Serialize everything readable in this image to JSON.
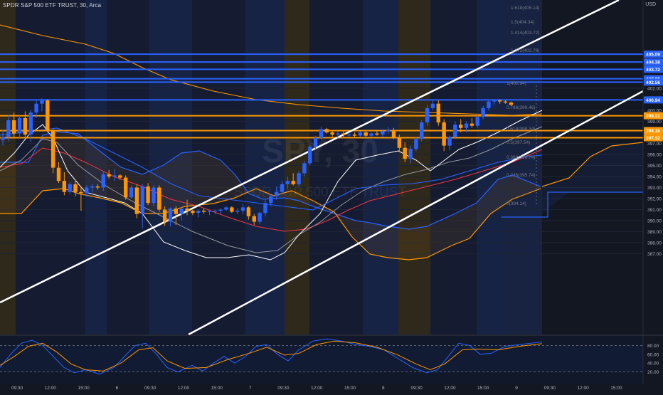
{
  "header": {
    "title": "SPDR S&P 500 ETF TRUST",
    "interval": "30",
    "exchange": "Arca",
    "currency": "USD"
  },
  "watermark": {
    "symbol": "SPY, 30",
    "name": "SPDR S&P 500 ETF TRUST"
  },
  "colors": {
    "background": "#131722",
    "bull": "#2962ff",
    "bear": "#ff9800",
    "hline_blue": "#2962ff",
    "hline_orange": "#ff9800",
    "channel": "#ffffff",
    "session_blue": "#172548",
    "session_orange": "#332b1c"
  },
  "price_axis": {
    "ticks": [
      "402.00",
      "400.00",
      "399.00",
      "398.00",
      "397.00",
      "396.00",
      "395.00",
      "394.00",
      "393.00",
      "392.00",
      "391.00",
      "390.00",
      "389.00",
      "388.00",
      "387.00"
    ],
    "labels": [
      {
        "text": "405.09",
        "value": 405.09,
        "color": "#2962ff"
      },
      {
        "text": "404.38",
        "value": 404.38,
        "color": "#2962ff"
      },
      {
        "text": "403.72",
        "value": 403.72,
        "color": "#2962ff"
      },
      {
        "text": "402.86",
        "value": 402.86,
        "color": "#2962ff"
      },
      {
        "text": "402.56",
        "value": 402.56,
        "color": "#2962ff"
      },
      {
        "text": "400.94",
        "value": 400.94,
        "color": "#2962ff"
      },
      {
        "text": "399.51",
        "value": 399.51,
        "color": "#ff9800"
      },
      {
        "text": "398.16",
        "value": 398.16,
        "color": "#ff9800"
      },
      {
        "text": "397.52",
        "value": 397.52,
        "color": "#ff9800"
      }
    ],
    "faint_labels": [
      "404.00"
    ]
  },
  "fib_labels": [
    "1.618(405.14)",
    "1.5(404.34)",
    "1.414(403.72)",
    "1.272(402.79)",
    "1(400.94)",
    "0.786(399.48)",
    "0.618(398.34)",
    "0.5(397.54)",
    "0.382(396.74)",
    "0.236(395.74)",
    "0(394.14)"
  ],
  "time_axis": [
    "09:30",
    "12:00",
    "15:00",
    "6",
    "09:30",
    "12:00",
    "15:00",
    "7",
    "09:30",
    "12:00",
    "15:00",
    "8",
    "09:30",
    "12:00",
    "15:00",
    "9",
    "09:30",
    "12:00",
    "15:00"
  ],
  "oscillator_ticks": [
    "80.00",
    "60.00",
    "40.00",
    "20.00"
  ],
  "chart_data": {
    "type": "candlestick",
    "title": "SPDR S&P 500 ETF TRUST, 30, Arca",
    "ylim": [
      386.8,
      406.0
    ],
    "yunit": "USD",
    "fields": [
      "open",
      "high",
      "low",
      "close"
    ],
    "candles": [
      [
        397.3,
        398.2,
        396.8,
        397.6
      ],
      [
        397.6,
        399.6,
        397.2,
        399.1
      ],
      [
        399.1,
        399.8,
        397.6,
        397.9
      ],
      [
        397.9,
        399.6,
        397.5,
        399.3
      ],
      [
        399.3,
        399.9,
        397.6,
        397.8
      ],
      [
        397.8,
        400.0,
        397.1,
        399.8
      ],
      [
        399.8,
        400.9,
        399.3,
        400.6
      ],
      [
        400.6,
        401.1,
        399.9,
        400.9
      ],
      [
        400.9,
        401.0,
        398.0,
        398.2
      ],
      [
        398.2,
        398.3,
        394.3,
        394.8
      ],
      [
        394.8,
        395.3,
        393.4,
        393.6
      ],
      [
        393.6,
        394.4,
        392.3,
        392.6
      ],
      [
        392.6,
        393.5,
        392.4,
        393.3
      ],
      [
        393.3,
        393.7,
        392.2,
        392.6
      ],
      [
        392.6,
        393.1,
        390.9,
        392.5
      ],
      [
        392.5,
        393.2,
        392.2,
        393.0
      ],
      [
        393.0,
        393.3,
        392.6,
        393.1
      ],
      [
        393.1,
        393.3,
        392.8,
        393.0
      ],
      [
        393.0,
        394.5,
        392.7,
        394.2
      ],
      [
        394.2,
        394.6,
        393.8,
        394.0
      ],
      [
        394.0,
        394.7,
        393.6,
        394.1
      ],
      [
        394.1,
        394.2,
        393.7,
        393.9
      ],
      [
        393.9,
        394.1,
        391.9,
        392.1
      ],
      [
        392.1,
        393.2,
        392.0,
        393.0
      ],
      [
        393.0,
        393.3,
        390.2,
        390.6
      ],
      [
        390.6,
        393.3,
        389.3,
        393.1
      ],
      [
        393.1,
        393.4,
        391.4,
        391.6
      ],
      [
        391.6,
        393.2,
        391.3,
        393.0
      ],
      [
        393.0,
        393.2,
        390.8,
        391.0
      ],
      [
        391.0,
        391.3,
        389.5,
        389.9
      ],
      [
        389.9,
        391.2,
        389.5,
        391.1
      ],
      [
        391.1,
        391.3,
        389.6,
        390.6
      ],
      [
        390.6,
        391.2,
        390.0,
        391.1
      ],
      [
        391.1,
        391.9,
        390.5,
        390.9
      ],
      [
        390.9,
        391.0,
        390.5,
        390.7
      ],
      [
        390.7,
        391.0,
        390.3,
        390.9
      ],
      [
        390.9,
        391.1,
        390.6,
        390.8
      ],
      [
        390.8,
        391.0,
        390.5,
        390.9
      ],
      [
        390.9,
        391.0,
        390.6,
        390.9
      ],
      [
        390.9,
        391.1,
        390.6,
        391.0
      ],
      [
        391.0,
        391.3,
        390.9,
        391.2
      ],
      [
        391.2,
        391.3,
        390.7,
        390.8
      ],
      [
        390.8,
        391.1,
        390.6,
        390.9
      ],
      [
        390.9,
        391.5,
        390.6,
        391.2
      ],
      [
        391.2,
        391.3,
        390.1,
        390.4
      ],
      [
        390.4,
        390.6,
        389.6,
        389.9
      ],
      [
        389.9,
        390.8,
        389.7,
        390.7
      ],
      [
        390.7,
        391.9,
        390.4,
        391.6
      ],
      [
        391.6,
        392.4,
        391.3,
        392.2
      ],
      [
        392.2,
        393.1,
        391.9,
        392.6
      ],
      [
        392.6,
        393.6,
        392.4,
        393.3
      ],
      [
        393.3,
        394.0,
        392.9,
        393.6
      ],
      [
        393.6,
        394.3,
        393.2,
        393.3
      ],
      [
        393.3,
        394.5,
        393.1,
        394.3
      ],
      [
        394.3,
        395.4,
        394.0,
        395.2
      ],
      [
        395.2,
        396.9,
        395.0,
        396.7
      ],
      [
        396.7,
        397.7,
        396.5,
        397.5
      ],
      [
        397.5,
        398.5,
        397.3,
        398.3
      ],
      [
        398.3,
        398.4,
        397.9,
        398.0
      ],
      [
        398.0,
        398.2,
        397.6,
        397.8
      ],
      [
        397.8,
        398.1,
        397.5,
        397.9
      ],
      [
        397.9,
        398.1,
        397.6,
        397.8
      ],
      [
        397.8,
        398.0,
        397.6,
        397.8
      ],
      [
        397.8,
        398.0,
        397.6,
        397.7
      ],
      [
        397.7,
        398.1,
        397.6,
        398.0
      ],
      [
        398.0,
        398.1,
        397.6,
        397.7
      ],
      [
        397.7,
        398.0,
        397.6,
        397.9
      ],
      [
        397.9,
        398.2,
        397.7,
        397.8
      ],
      [
        397.8,
        398.3,
        397.6,
        398.1
      ],
      [
        398.1,
        398.5,
        397.9,
        398.2
      ],
      [
        398.2,
        398.4,
        397.4,
        397.5
      ],
      [
        397.5,
        397.8,
        396.2,
        396.6
      ],
      [
        396.6,
        397.1,
        395.3,
        395.6
      ],
      [
        395.6,
        396.8,
        395.2,
        396.5
      ],
      [
        396.5,
        397.6,
        396.3,
        397.4
      ],
      [
        397.4,
        399.1,
        397.2,
        398.9
      ],
      [
        398.9,
        400.5,
        398.6,
        400.2
      ],
      [
        400.2,
        400.9,
        400.0,
        400.6
      ],
      [
        400.6,
        400.9,
        398.6,
        398.9
      ],
      [
        398.9,
        399.2,
        396.3,
        396.8
      ],
      [
        396.8,
        397.7,
        396.4,
        397.6
      ],
      [
        397.6,
        399.0,
        397.4,
        398.7
      ],
      [
        398.7,
        399.2,
        398.0,
        398.4
      ],
      [
        398.4,
        399.0,
        398.0,
        398.8
      ],
      [
        398.8,
        399.3,
        398.4,
        398.6
      ],
      [
        398.6,
        399.6,
        398.4,
        399.4
      ],
      [
        399.4,
        400.4,
        399.2,
        400.2
      ],
      [
        400.2,
        401.0,
        400.0,
        400.8
      ],
      [
        400.8,
        401.0,
        400.5,
        400.9
      ],
      [
        400.9,
        401.0,
        400.6,
        400.8
      ],
      [
        400.8,
        400.9,
        400.6,
        400.7
      ],
      [
        400.7,
        400.8,
        400.4,
        400.5
      ]
    ],
    "horizontal_levels": [
      405.09,
      404.38,
      403.72,
      402.86,
      402.56,
      400.94,
      399.51,
      398.16,
      397.52
    ]
  }
}
